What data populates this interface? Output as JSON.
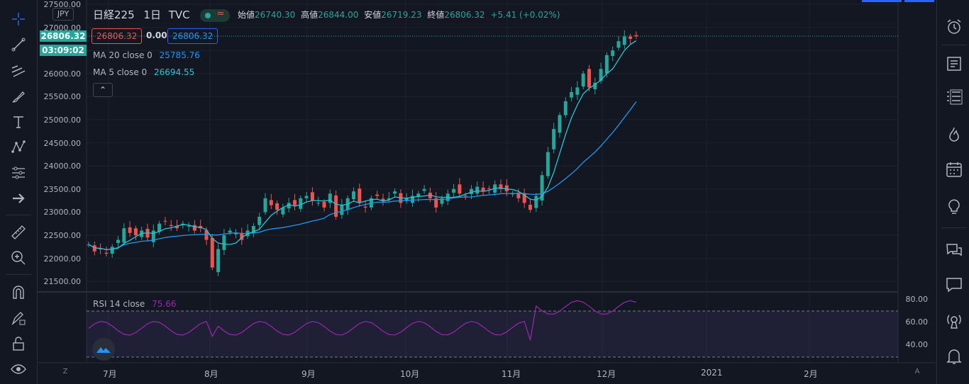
{
  "header": {
    "symbol": "日経225",
    "interval": "1日",
    "exchange": "TVC",
    "currency": "JPY",
    "open_label": "始値",
    "open": "26740.30",
    "high_label": "高値",
    "high": "26844.00",
    "low_label": "安値",
    "low": "26719.23",
    "close_label": "終値",
    "close": "26806.32",
    "change": "+5.41 (+0.02%)"
  },
  "trade": {
    "sell": "26806.32",
    "spread": "0.00",
    "buy": "26806.32"
  },
  "indicators": {
    "ma20_label": "MA 20 close 0",
    "ma20_value": "25785.76",
    "ma5_label": "MA 5 close 0",
    "ma5_value": "26694.55",
    "rsi_label": "RSI 14 close",
    "rsi_value": "75.66"
  },
  "price_tag": {
    "price": "26806.32",
    "countdown": "03:09:02"
  },
  "price_axis": [
    "27500.00",
    "27000.00",
    "26500.00",
    "26000.00",
    "25500.00",
    "25000.00",
    "24500.00",
    "24000.00",
    "23500.00",
    "23000.00",
    "22500.00",
    "22000.00",
    "21500.00"
  ],
  "rsi_axis": [
    "80.00",
    "60.00",
    "40.00"
  ],
  "time_axis": [
    "7月",
    "8月",
    "9月",
    "10月",
    "11月",
    "12月",
    "2021",
    "2月"
  ],
  "axis_buttons": {
    "left": "Z",
    "right": "A"
  },
  "colors": {
    "up": "#26a69a",
    "down": "#ef5350",
    "ma20": "#2196f3",
    "ma5": "#26c6da",
    "rsi": "#9c27b0",
    "accent": "#2962ff"
  },
  "left_tools": [
    "crosshair-icon",
    "trend-line-icon",
    "fib-icon",
    "brush-icon",
    "text-icon",
    "pattern-icon",
    "forecast-icon",
    "arrow-right-icon",
    "ruler-icon",
    "zoom-icon",
    "magnet-icon",
    "lock-draw-icon",
    "lock-icon",
    "eye-icon"
  ],
  "right_tools": [
    "watchlist-icon",
    "alarm-icon",
    "news-icon",
    "list-icon",
    "hotlist-icon",
    "calendar-icon",
    "ideas-icon",
    "chat-icon",
    "comment-icon",
    "streams-icon",
    "notifications-icon"
  ]
}
